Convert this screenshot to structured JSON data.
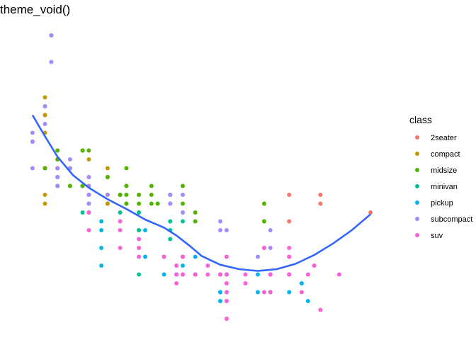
{
  "chart_data": {
    "type": "scatter",
    "title": "theme_void()",
    "xlabel": "",
    "ylabel": "",
    "xlim": [
      1.33,
      7.27
    ],
    "ylim": [
      10.4,
      45.6
    ],
    "grid": false,
    "axes": false,
    "legend": {
      "title": "class",
      "position": "right"
    },
    "series": [
      {
        "name": "2seater",
        "color": "#F8766D",
        "points": [
          [
            5.7,
            26
          ],
          [
            5.7,
            23
          ],
          [
            6.2,
            26
          ],
          [
            6.2,
            25
          ],
          [
            7.0,
            24
          ]
        ]
      },
      {
        "name": "compact",
        "color": "#C49A00",
        "points": [
          [
            1.8,
            29
          ],
          [
            1.8,
            29
          ],
          [
            2.0,
            31
          ],
          [
            2.0,
            30
          ],
          [
            2.8,
            26
          ],
          [
            2.8,
            26
          ],
          [
            3.1,
            27
          ],
          [
            1.8,
            26
          ],
          [
            1.8,
            25
          ],
          [
            2.0,
            28
          ],
          [
            2.0,
            27
          ],
          [
            2.8,
            25
          ],
          [
            2.8,
            25
          ],
          [
            3.1,
            25
          ],
          [
            2.2,
            27
          ],
          [
            2.2,
            29
          ],
          [
            2.4,
            31
          ],
          [
            2.4,
            31
          ],
          [
            3.0,
            26
          ],
          [
            3.0,
            26
          ],
          [
            3.3,
            26
          ],
          [
            1.8,
            29
          ],
          [
            1.8,
            29
          ],
          [
            1.8,
            33
          ],
          [
            1.8,
            35
          ],
          [
            1.8,
            37
          ],
          [
            1.8,
            35
          ],
          [
            2.0,
            29
          ],
          [
            2.0,
            29
          ],
          [
            2.0,
            28
          ],
          [
            2.0,
            29
          ],
          [
            2.8,
            29
          ],
          [
            1.9,
            44
          ],
          [
            2.0,
            29
          ],
          [
            2.5,
            30
          ],
          [
            2.8,
            26
          ],
          [
            2.8,
            25
          ]
        ]
      },
      {
        "name": "midsize",
        "color": "#53B400",
        "points": [
          [
            1.8,
            29
          ],
          [
            1.8,
            29
          ],
          [
            2.0,
            31
          ],
          [
            2.0,
            30
          ],
          [
            2.8,
            26
          ],
          [
            3.1,
            26
          ],
          [
            4.2,
            23
          ],
          [
            2.4,
            27
          ],
          [
            3.0,
            26
          ],
          [
            3.3,
            26
          ],
          [
            3.3,
            25
          ],
          [
            3.8,
            26
          ],
          [
            3.8,
            26
          ],
          [
            4.0,
            27
          ],
          [
            3.5,
            25
          ],
          [
            3.5,
            27
          ],
          [
            3.5,
            26
          ],
          [
            5.3,
            23
          ],
          [
            2.2,
            29
          ],
          [
            2.2,
            27
          ],
          [
            2.4,
            31
          ],
          [
            2.4,
            27
          ],
          [
            3.0,
            26
          ],
          [
            3.0,
            26
          ],
          [
            3.8,
            25
          ],
          [
            3.1,
            27
          ],
          [
            3.1,
            29
          ],
          [
            2.5,
            31
          ],
          [
            2.5,
            28
          ],
          [
            2.8,
            28
          ],
          [
            2.8,
            28
          ],
          [
            2.0,
            27
          ],
          [
            2.5,
            26
          ],
          [
            2.4,
            27
          ],
          [
            4.0,
            25
          ],
          [
            3.3,
            24
          ],
          [
            3.1,
            25
          ],
          [
            4.2,
            24
          ],
          [
            5.3,
            25
          ],
          [
            4.0,
            24
          ],
          [
            3.6,
            25
          ]
        ]
      },
      {
        "name": "minivan",
        "color": "#00C094",
        "points": [
          [
            2.4,
            24
          ],
          [
            3.0,
            24
          ],
          [
            3.3,
            22
          ],
          [
            3.3,
            22
          ],
          [
            3.3,
            24
          ],
          [
            3.3,
            24
          ],
          [
            3.3,
            17
          ],
          [
            3.8,
            22
          ],
          [
            3.8,
            21
          ],
          [
            3.8,
            23
          ],
          [
            4.0,
            23
          ]
        ]
      },
      {
        "name": "pickup",
        "color": "#00B6EB",
        "points": [
          [
            3.7,
            17
          ],
          [
            3.7,
            19
          ],
          [
            3.9,
            17
          ],
          [
            3.9,
            17
          ],
          [
            4.7,
            17
          ],
          [
            4.7,
            17
          ],
          [
            4.7,
            17
          ],
          [
            5.2,
            17
          ],
          [
            5.2,
            15
          ],
          [
            5.7,
            15
          ],
          [
            5.9,
            16
          ],
          [
            4.7,
            14
          ],
          [
            4.7,
            15
          ],
          [
            4.6,
            15
          ],
          [
            5.4,
            17
          ],
          [
            5.4,
            15
          ],
          [
            4.2,
            17
          ],
          [
            4.6,
            17
          ],
          [
            4.6,
            15
          ],
          [
            4.6,
            14
          ],
          [
            5.4,
            17
          ],
          [
            2.7,
            20
          ],
          [
            2.7,
            23
          ],
          [
            2.7,
            22
          ],
          [
            3.4,
            19
          ],
          [
            4.0,
            18
          ],
          [
            4.0,
            19
          ],
          [
            4.7,
            17
          ],
          [
            5.7,
            17
          ],
          [
            6.0,
            14
          ],
          [
            2.7,
            18
          ],
          [
            3.4,
            22
          ],
          [
            4.2,
            19
          ]
        ]
      },
      {
        "name": "subcompact",
        "color": "#A58AFF",
        "points": [
          [
            3.8,
            26
          ],
          [
            3.8,
            25
          ],
          [
            4.0,
            26
          ],
          [
            4.0,
            24
          ],
          [
            4.6,
            23
          ],
          [
            4.6,
            22
          ],
          [
            5.4,
            20
          ],
          [
            1.6,
            33
          ],
          [
            1.6,
            32
          ],
          [
            1.6,
            32
          ],
          [
            1.6,
            29
          ],
          [
            1.6,
            32
          ],
          [
            1.8,
            34
          ],
          [
            1.8,
            36
          ],
          [
            1.8,
            36
          ],
          [
            2.0,
            29
          ],
          [
            1.9,
            41
          ],
          [
            1.9,
            44
          ],
          [
            2.0,
            28
          ],
          [
            2.0,
            29
          ],
          [
            2.5,
            28
          ],
          [
            2.5,
            26
          ],
          [
            2.2,
            30
          ],
          [
            2.2,
            29
          ],
          [
            2.5,
            26
          ],
          [
            2.5,
            25
          ],
          [
            2.0,
            28
          ],
          [
            2.0,
            27
          ],
          [
            2.8,
            26
          ],
          [
            5.4,
            22
          ],
          [
            5.2,
            19
          ],
          [
            4.7,
            22
          ],
          [
            2.5,
            26
          ],
          [
            2.5,
            25
          ],
          [
            2.5,
            27
          ]
        ]
      },
      {
        "name": "suv",
        "color": "#FB61D7",
        "points": [
          [
            5.3,
            20
          ],
          [
            5.3,
            15
          ],
          [
            5.3,
            20
          ],
          [
            5.7,
            17
          ],
          [
            6.0,
            17
          ],
          [
            5.7,
            19
          ],
          [
            5.7,
            20
          ],
          [
            5.3,
            20
          ],
          [
            6.5,
            17
          ],
          [
            4.7,
            12
          ],
          [
            4.7,
            16
          ],
          [
            4.7,
            17
          ],
          [
            5.7,
            17
          ],
          [
            6.1,
            18
          ],
          [
            4.0,
            17
          ],
          [
            4.0,
            17
          ],
          [
            4.6,
            17
          ],
          [
            5.0,
            17
          ],
          [
            4.2,
            17
          ],
          [
            4.4,
            18
          ],
          [
            4.6,
            17
          ],
          [
            5.4,
            17
          ],
          [
            5.4,
            17
          ],
          [
            4.0,
            19
          ],
          [
            4.0,
            17
          ],
          [
            4.6,
            17
          ],
          [
            5.0,
            16
          ],
          [
            3.3,
            20
          ],
          [
            3.3,
            19
          ],
          [
            4.0,
            19
          ],
          [
            4.2,
            17
          ],
          [
            3.7,
            19
          ],
          [
            3.7,
            19
          ],
          [
            3.9,
            17
          ],
          [
            5.9,
            15
          ],
          [
            4.4,
            17
          ],
          [
            2.5,
            24
          ],
          [
            2.5,
            24
          ],
          [
            2.5,
            22
          ],
          [
            3.3,
            21
          ],
          [
            3.0,
            23
          ],
          [
            3.0,
            22
          ],
          [
            3.0,
            20
          ],
          [
            3.9,
            18
          ],
          [
            4.0,
            19
          ],
          [
            4.0,
            17
          ],
          [
            4.7,
            14
          ],
          [
            4.7,
            15
          ],
          [
            5.7,
            19
          ],
          [
            6.1,
            18
          ],
          [
            6.2,
            13
          ],
          [
            3.9,
            16
          ],
          [
            4.7,
            19
          ],
          [
            5.4,
            15
          ]
        ]
      }
    ],
    "smooth": {
      "name": "loess",
      "color": "#3366FF",
      "x": [
        1.6,
        1.8,
        2.0,
        2.25,
        2.5,
        2.8,
        3.1,
        3.4,
        3.7,
        3.9,
        4.1,
        4.3,
        4.6,
        4.9,
        5.2,
        5.5,
        5.8,
        6.1,
        6.4,
        6.7,
        7.0
      ],
      "y": [
        35.0,
        32.6,
        30.3,
        28.2,
        26.8,
        25.5,
        24.4,
        23.2,
        22.3,
        21.4,
        20.3,
        19.1,
        18.1,
        17.6,
        17.4,
        17.6,
        18.2,
        19.2,
        20.5,
        22.0,
        23.8
      ]
    }
  }
}
